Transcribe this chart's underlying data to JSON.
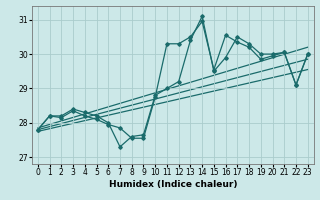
{
  "xlabel": "Humidex (Indice chaleur)",
  "ylabel": "",
  "bg_color": "#cce8e8",
  "grid_color": "#aacccc",
  "line_color": "#1a6b6b",
  "xlim": [
    -0.5,
    23.5
  ],
  "ylim": [
    26.8,
    31.4
  ],
  "yticks": [
    27,
    28,
    29,
    30,
    31
  ],
  "xticks": [
    0,
    1,
    2,
    3,
    4,
    5,
    6,
    7,
    8,
    9,
    10,
    11,
    12,
    13,
    14,
    15,
    16,
    17,
    18,
    19,
    20,
    21,
    22,
    23
  ],
  "series1_x": [
    0,
    1,
    2,
    3,
    4,
    5,
    6,
    7,
    8,
    9,
    10,
    11,
    12,
    13,
    14,
    15,
    16,
    17,
    18,
    19,
    20,
    21,
    22,
    23
  ],
  "series1_y": [
    27.8,
    28.2,
    28.2,
    28.4,
    28.3,
    28.2,
    28.0,
    27.3,
    27.6,
    27.65,
    28.8,
    29.0,
    29.2,
    30.4,
    31.1,
    29.5,
    29.9,
    30.5,
    30.3,
    30.0,
    30.0,
    30.05,
    29.1,
    30.0
  ],
  "series2_x": [
    0,
    1,
    2,
    3,
    4,
    5,
    6,
    7,
    8,
    9,
    10,
    11,
    12,
    13,
    14,
    15,
    16,
    17,
    18,
    19,
    20,
    21,
    22,
    23
  ],
  "series2_y": [
    27.8,
    28.2,
    28.15,
    28.35,
    28.2,
    28.1,
    27.95,
    27.85,
    27.55,
    27.55,
    28.75,
    30.3,
    30.3,
    30.5,
    30.95,
    29.55,
    30.55,
    30.35,
    30.2,
    29.85,
    29.95,
    30.05,
    29.1,
    30.0
  ],
  "trend1_x": [
    0,
    23
  ],
  "trend1_y": [
    27.85,
    30.2
  ],
  "trend2_x": [
    0,
    23
  ],
  "trend2_y": [
    27.8,
    29.85
  ],
  "trend3_x": [
    0,
    23
  ],
  "trend3_y": [
    27.75,
    29.55
  ]
}
